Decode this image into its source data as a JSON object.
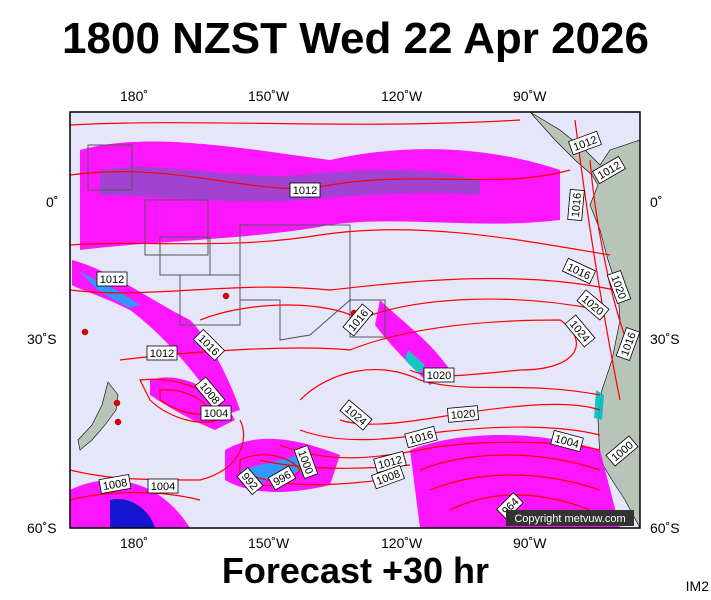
{
  "title": "1800 NZST Wed 22 Apr 2026",
  "footer": "Forecast +30 hr",
  "corner_label": "IM2",
  "copyright": "Copyright metvuw.com",
  "axes": {
    "top": [
      "180˚",
      "150˚W",
      "120˚W",
      "90˚W"
    ],
    "bottom": [
      "180˚",
      "150˚W",
      "120˚W",
      "90˚W"
    ],
    "left": [
      "0˚",
      "30˚S",
      "60˚S"
    ],
    "right": [
      "0˚",
      "30˚S",
      "60˚S"
    ]
  },
  "isobar_labels": [
    "1012",
    "1012",
    "1012",
    "1016",
    "1012",
    "1016",
    "1020",
    "1020",
    "1024",
    "1016",
    "1016",
    "1016",
    "1012",
    "1020",
    "1008",
    "1004",
    "1024",
    "1020",
    "1016",
    "1004",
    "1000",
    "1012",
    "1008",
    "1000",
    "996",
    "992",
    "964",
    "1008",
    "1004"
  ],
  "colors": {
    "ocean": "#e6e6fa",
    "isobar": "#ff0000",
    "rain_light": "#ff00ff",
    "rain_mid": "#8a2be2",
    "rain_heavy": "#0000cd",
    "land": "#b8c4b8"
  }
}
